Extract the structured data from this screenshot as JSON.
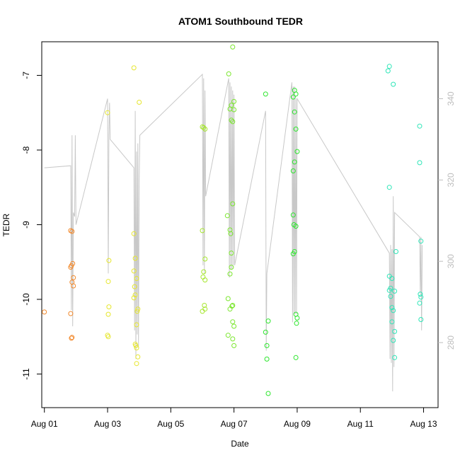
{
  "chart_data": {
    "type": "scatter",
    "title": "ATOM1 Southbound TEDR",
    "xlabel": "Date",
    "ylabel": "TEDR",
    "xlim": [
      "2024-07-31T22:00",
      "2024-08-13T11:00"
    ],
    "ylim": [
      -11.45,
      -6.55
    ],
    "x_ticks": [
      "Aug 01",
      "Aug 03",
      "Aug 05",
      "Aug 07",
      "Aug 09",
      "Aug 11",
      "Aug 13"
    ],
    "x_tick_dates": [
      "2024-08-01",
      "2024-08-03",
      "2024-08-05",
      "2024-08-07",
      "2024-08-09",
      "2024-08-11",
      "2024-08-13"
    ],
    "y_ticks": [
      -11,
      -10,
      -9,
      -8,
      -7
    ],
    "y2_ticks": [
      280,
      300,
      320,
      340
    ],
    "y2lim": [
      264,
      354
    ],
    "grid": false,
    "series": [
      {
        "color": "#f28a2e",
        "points": [
          [
            "2024-08-01T00:00",
            -10.17
          ],
          [
            "2024-08-01T20:00",
            -9.08
          ],
          [
            "2024-08-01T21:00",
            -9.09
          ],
          [
            "2024-08-01T20:30",
            -9.55
          ],
          [
            "2024-08-01T21:30",
            -9.52
          ],
          [
            "2024-08-01T20:00",
            -9.57
          ],
          [
            "2024-08-01T22:00",
            -9.71
          ],
          [
            "2024-08-01T21:00",
            -9.77
          ],
          [
            "2024-08-01T22:00",
            -9.82
          ],
          [
            "2024-08-01T20:00",
            -10.19
          ],
          [
            "2024-08-01T21:00",
            -10.51
          ],
          [
            "2024-08-01T20:30",
            -10.52
          ]
        ]
      },
      {
        "color": "#e6e62e",
        "points": [
          [
            "2024-08-03T00:00",
            -7.5
          ],
          [
            "2024-08-03T01:00",
            -9.48
          ],
          [
            "2024-08-03T00:30",
            -9.76
          ],
          [
            "2024-08-03T01:00",
            -10.1
          ],
          [
            "2024-08-03T00:30",
            -10.2
          ],
          [
            "2024-08-03T00:00",
            -10.48
          ],
          [
            "2024-08-03T00:30",
            -10.5
          ],
          [
            "2024-08-03T20:00",
            -6.9
          ],
          [
            "2024-08-04T00:00",
            -7.36
          ],
          [
            "2024-08-03T20:00",
            -9.12
          ],
          [
            "2024-08-03T21:00",
            -9.45
          ],
          [
            "2024-08-03T20:00",
            -9.62
          ],
          [
            "2024-08-03T22:00",
            -9.72
          ],
          [
            "2024-08-03T20:30",
            -9.83
          ],
          [
            "2024-08-03T21:00",
            -9.94
          ],
          [
            "2024-08-03T20:00",
            -9.98
          ],
          [
            "2024-08-03T23:00",
            -10.13
          ],
          [
            "2024-08-03T22:30",
            -10.16
          ],
          [
            "2024-08-03T22:00",
            -10.34
          ],
          [
            "2024-08-03T21:00",
            -10.6
          ],
          [
            "2024-08-03T21:30",
            -10.62
          ],
          [
            "2024-08-03T22:00",
            -10.65
          ],
          [
            "2024-08-03T23:00",
            -10.77
          ],
          [
            "2024-08-03T22:00",
            -10.86
          ]
        ]
      },
      {
        "color": "#a6e62e",
        "points": [
          [
            "2024-08-06T00:00",
            -7.69
          ],
          [
            "2024-08-06T01:00",
            -7.7
          ],
          [
            "2024-08-06T02:00",
            -7.72
          ],
          [
            "2024-08-06T00:00",
            -9.08
          ],
          [
            "2024-08-06T02:00",
            -9.46
          ],
          [
            "2024-08-06T01:00",
            -9.63
          ],
          [
            "2024-08-06T00:30",
            -9.7
          ],
          [
            "2024-08-06T02:00",
            -9.74
          ],
          [
            "2024-08-06T01:30",
            -10.08
          ],
          [
            "2024-08-06T02:00",
            -10.13
          ],
          [
            "2024-08-06T00:00",
            -10.16
          ]
        ]
      },
      {
        "color": "#7be62e",
        "points": [
          [
            "2024-08-06T23:00",
            -6.62
          ],
          [
            "2024-08-06T20:00",
            -6.98
          ],
          [
            "2024-08-07T00:00",
            -7.35
          ],
          [
            "2024-08-06T22:00",
            -7.4
          ],
          [
            "2024-08-06T21:00",
            -7.45
          ],
          [
            "2024-08-07T00:00",
            -7.46
          ],
          [
            "2024-08-06T22:00",
            -7.6
          ],
          [
            "2024-08-06T23:00",
            -7.62
          ],
          [
            "2024-08-06T23:00",
            -8.72
          ],
          [
            "2024-08-06T19:00",
            -8.88
          ],
          [
            "2024-08-06T21:00",
            -9.07
          ],
          [
            "2024-08-06T21:30",
            -9.12
          ],
          [
            "2024-08-06T22:00",
            -9.38
          ],
          [
            "2024-08-06T22:00",
            -9.57
          ],
          [
            "2024-08-06T21:00",
            -9.66
          ],
          [
            "2024-08-06T19:30",
            -9.99
          ],
          [
            "2024-08-06T23:00",
            -10.08
          ],
          [
            "2024-08-06T22:30",
            -10.09
          ],
          [
            "2024-08-06T21:00",
            -10.13
          ],
          [
            "2024-08-06T23:00",
            -10.3
          ],
          [
            "2024-08-07T00:00",
            -10.36
          ],
          [
            "2024-08-06T19:30",
            -10.48
          ],
          [
            "2024-08-06T23:00",
            -10.53
          ],
          [
            "2024-08-07T00:00",
            -10.62
          ]
        ]
      },
      {
        "color": "#2ee62e",
        "points": [
          [
            "2024-08-08T00:00",
            -7.25
          ],
          [
            "2024-08-08T02:00",
            -10.29
          ],
          [
            "2024-08-08T00:00",
            -10.44
          ],
          [
            "2024-08-08T01:00",
            -10.62
          ],
          [
            "2024-08-08T01:00",
            -10.8
          ],
          [
            "2024-08-08T02:00",
            -11.26
          ],
          [
            "2024-08-08T21:00",
            -7.29
          ],
          [
            "2024-08-08T22:00",
            -7.2
          ],
          [
            "2024-08-08T23:00",
            -7.25
          ],
          [
            "2024-08-08T22:00",
            -7.49
          ],
          [
            "2024-08-08T23:00",
            -7.72
          ],
          [
            "2024-08-09T00:00",
            -8.02
          ],
          [
            "2024-08-08T22:00",
            -8.16
          ],
          [
            "2024-08-08T21:00",
            -8.28
          ],
          [
            "2024-08-08T21:00",
            -8.87
          ],
          [
            "2024-08-08T21:30",
            -9.0
          ],
          [
            "2024-08-08T23:00",
            -9.02
          ],
          [
            "2024-08-08T22:00",
            -9.36
          ],
          [
            "2024-08-08T21:00",
            -9.39
          ],
          [
            "2024-08-08T23:00",
            -10.2
          ],
          [
            "2024-08-09T00:00",
            -10.25
          ],
          [
            "2024-08-08T23:30",
            -10.32
          ],
          [
            "2024-08-08T23:00",
            -10.78
          ]
        ]
      },
      {
        "color": "#2ee6b8",
        "points": [
          [
            "2024-08-11T22:00",
            -6.88
          ],
          [
            "2024-08-11T21:00",
            -6.94
          ],
          [
            "2024-08-12T01:00",
            -7.12
          ],
          [
            "2024-08-11T22:00",
            -8.5
          ],
          [
            "2024-08-12T03:00",
            -9.36
          ],
          [
            "2024-08-11T22:00",
            -9.69
          ],
          [
            "2024-08-12T00:00",
            -9.72
          ],
          [
            "2024-08-11T23:00",
            -9.85
          ],
          [
            "2024-08-11T22:00",
            -9.88
          ],
          [
            "2024-08-12T02:00",
            -9.89
          ],
          [
            "2024-08-11T23:00",
            -9.96
          ],
          [
            "2024-08-12T00:00",
            -10.11
          ],
          [
            "2024-08-12T01:00",
            -10.15
          ],
          [
            "2024-08-12T00:00",
            -10.3
          ],
          [
            "2024-08-12T02:00",
            -10.43
          ],
          [
            "2024-08-12T01:00",
            -10.55
          ],
          [
            "2024-08-12T02:00",
            -10.78
          ],
          [
            "2024-08-12T21:00",
            -7.68
          ],
          [
            "2024-08-12T21:00",
            -8.17
          ],
          [
            "2024-08-12T22:00",
            -9.22
          ],
          [
            "2024-08-12T21:30",
            -9.93
          ],
          [
            "2024-08-12T22:00",
            -9.97
          ],
          [
            "2024-08-12T21:00",
            -10.05
          ],
          [
            "2024-08-12T22:00",
            -10.27
          ]
        ]
      }
    ],
    "overlay": {
      "axis": "y2",
      "color": "#c8c8c8",
      "points": [
        [
          "2024-08-01T00:00",
          323
        ],
        [
          "2024-08-01T20:00",
          323.5
        ],
        [
          "2024-08-01T20:30",
          288
        ],
        [
          "2024-08-01T21:00",
          331
        ],
        [
          "2024-08-01T21:30",
          284
        ],
        [
          "2024-08-01T22:00",
          312
        ],
        [
          "2024-08-01T23:00",
          311
        ],
        [
          "2024-08-01T23:30",
          331
        ],
        [
          "2024-08-02T00:00",
          309
        ],
        [
          "2024-08-03T00:00",
          340
        ],
        [
          "2024-08-03T00:30",
          297
        ],
        [
          "2024-08-03T01:00",
          331
        ],
        [
          "2024-08-03T01:30",
          339
        ],
        [
          "2024-08-03T02:00",
          330
        ],
        [
          "2024-08-03T20:00",
          323
        ],
        [
          "2024-08-03T20:30",
          283
        ],
        [
          "2024-08-03T21:00",
          337
        ],
        [
          "2024-08-03T21:30",
          276
        ],
        [
          "2024-08-03T22:00",
          327
        ],
        [
          "2024-08-03T22:30",
          282
        ],
        [
          "2024-08-03T23:00",
          329
        ],
        [
          "2024-08-03T23:30",
          279
        ],
        [
          "2024-08-04T00:00",
          320
        ],
        [
          "2024-08-04T00:30",
          331
        ],
        [
          "2024-08-06T00:00",
          346
        ],
        [
          "2024-08-06T00:30",
          299
        ],
        [
          "2024-08-06T01:00",
          345
        ],
        [
          "2024-08-06T01:30",
          297
        ],
        [
          "2024-08-06T02:00",
          342
        ],
        [
          "2024-08-06T02:30",
          316
        ],
        [
          "2024-08-06T20:00",
          345
        ],
        [
          "2024-08-06T20:30",
          296
        ],
        [
          "2024-08-06T21:00",
          344
        ],
        [
          "2024-08-06T21:30",
          298
        ],
        [
          "2024-08-06T22:00",
          343
        ],
        [
          "2024-08-06T22:30",
          298
        ],
        [
          "2024-08-06T23:00",
          342
        ],
        [
          "2024-08-06T23:30",
          299
        ],
        [
          "2024-08-07T00:00",
          341
        ],
        [
          "2024-08-07T00:30",
          299
        ],
        [
          "2024-08-08T00:00",
          337
        ],
        [
          "2024-08-08T00:30",
          278
        ],
        [
          "2024-08-08T01:00",
          297
        ],
        [
          "2024-08-08T20:00",
          344
        ],
        [
          "2024-08-08T20:30",
          285
        ],
        [
          "2024-08-08T21:00",
          343
        ],
        [
          "2024-08-08T21:30",
          287
        ],
        [
          "2024-08-08T22:00",
          343
        ],
        [
          "2024-08-08T22:30",
          287
        ],
        [
          "2024-08-08T23:00",
          340
        ],
        [
          "2024-08-08T23:30",
          287
        ],
        [
          "2024-08-09T00:00",
          340
        ],
        [
          "2024-08-11T22:00",
          302
        ],
        [
          "2024-08-11T22:30",
          276
        ],
        [
          "2024-08-11T23:00",
          304
        ],
        [
          "2024-08-11T23:30",
          275
        ],
        [
          "2024-08-12T00:00",
          303
        ],
        [
          "2024-08-12T00:30",
          268
        ],
        [
          "2024-08-12T01:00",
          316
        ],
        [
          "2024-08-12T01:30",
          274
        ],
        [
          "2024-08-12T02:00",
          312
        ],
        [
          "2024-08-12T21:00",
          306
        ],
        [
          "2024-08-12T21:30",
          292
        ],
        [
          "2024-08-12T22:00",
          306
        ],
        [
          "2024-08-12T22:30",
          283
        ],
        [
          "2024-08-12T23:00",
          304
        ]
      ]
    }
  }
}
